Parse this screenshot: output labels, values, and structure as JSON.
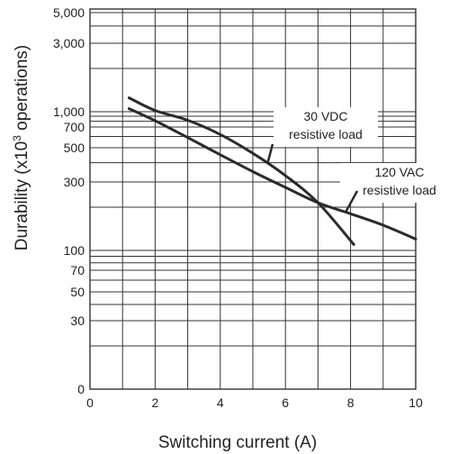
{
  "chart_data": {
    "type": "line",
    "xlabel": "Switching current (A)",
    "ylabel": "Durability (x10³ operations)",
    "xlim": [
      0,
      10
    ],
    "ylim": [
      0,
      5000
    ],
    "y_scale": "log-style (irregular, labeled ticks only)",
    "grid": true,
    "x_ticks": [
      {
        "value": 0,
        "label": "0"
      },
      {
        "value": 2,
        "label": "2"
      },
      {
        "value": 4,
        "label": "4"
      },
      {
        "value": 6,
        "label": "6"
      },
      {
        "value": 8,
        "label": "8"
      },
      {
        "value": 10,
        "label": "10"
      }
    ],
    "y_ticks": [
      {
        "value": 5000,
        "label": "5,000"
      },
      {
        "value": 3000,
        "label": "3,000"
      },
      {
        "value": 1000,
        "label": "1,000"
      },
      {
        "value": 700,
        "label": "700"
      },
      {
        "value": 500,
        "label": "500"
      },
      {
        "value": 300,
        "label": "300"
      },
      {
        "value": 100,
        "label": "100"
      },
      {
        "value": 70,
        "label": "70"
      },
      {
        "value": 50,
        "label": "50"
      },
      {
        "value": 30,
        "label": "30"
      },
      {
        "value": 0,
        "label": "0"
      }
    ],
    "series": [
      {
        "name": "30 VDC resistive load",
        "x": [
          1.2,
          2,
          3,
          4,
          5,
          6,
          7,
          8.1
        ],
        "y": [
          1250,
          1020,
          820,
          620,
          460,
          330,
          215,
          110
        ]
      },
      {
        "name": "120 VAC resistive load",
        "x": [
          1.2,
          2,
          3,
          4,
          5,
          6,
          7,
          8,
          9,
          10
        ],
        "y": [
          1050,
          810,
          590,
          450,
          350,
          275,
          215,
          180,
          150,
          120
        ]
      }
    ],
    "annotations": [
      {
        "lines": [
          "30 VDC",
          "resistive load"
        ],
        "series": 0
      },
      {
        "lines": [
          "120 VAC",
          "resistive load"
        ],
        "series": 1
      }
    ]
  }
}
